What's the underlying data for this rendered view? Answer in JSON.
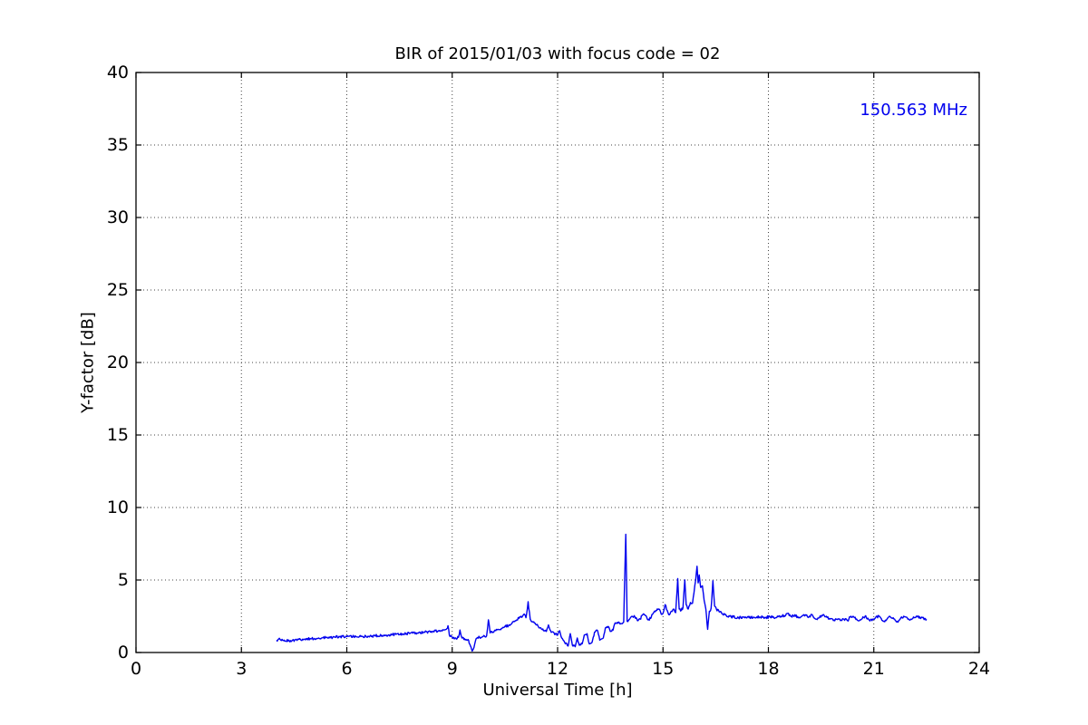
{
  "chart_data": {
    "type": "line",
    "title": "BIR of 2015/01/03 with focus code = 02",
    "xlabel": "Universal Time [h]",
    "ylabel": "Y-factor [dB]",
    "xlim": [
      0,
      24
    ],
    "ylim": [
      0,
      40
    ],
    "xticks": [
      0,
      3,
      6,
      9,
      12,
      15,
      18,
      21,
      24
    ],
    "yticks": [
      0,
      5,
      10,
      15,
      20,
      25,
      30,
      35,
      40
    ],
    "grid": "dotted",
    "grid_color": "#444444",
    "frame_color": "#000000",
    "legend_position": "upper right",
    "series": [
      {
        "name": "150.563 MHz",
        "color": "#0000ee",
        "noise_amplitude": 0.09,
        "points": [
          [
            4.0,
            0.85
          ],
          [
            4.1,
            0.9
          ],
          [
            4.25,
            0.8
          ],
          [
            4.4,
            0.82
          ],
          [
            4.6,
            0.88
          ],
          [
            4.8,
            0.92
          ],
          [
            5.0,
            0.95
          ],
          [
            5.2,
            1.0
          ],
          [
            5.4,
            1.02
          ],
          [
            5.6,
            1.05
          ],
          [
            5.8,
            1.08
          ],
          [
            6.0,
            1.1
          ],
          [
            6.2,
            1.1
          ],
          [
            6.4,
            1.1
          ],
          [
            6.6,
            1.12
          ],
          [
            6.8,
            1.15
          ],
          [
            7.0,
            1.18
          ],
          [
            7.2,
            1.22
          ],
          [
            7.4,
            1.25
          ],
          [
            7.6,
            1.28
          ],
          [
            7.8,
            1.32
          ],
          [
            8.0,
            1.35
          ],
          [
            8.2,
            1.4
          ],
          [
            8.4,
            1.45
          ],
          [
            8.6,
            1.5
          ],
          [
            8.75,
            1.55
          ],
          [
            8.85,
            1.65
          ],
          [
            8.88,
            1.85
          ],
          [
            8.92,
            1.2
          ],
          [
            9.0,
            1.05
          ],
          [
            9.1,
            1.0
          ],
          [
            9.18,
            1.05
          ],
          [
            9.22,
            1.55
          ],
          [
            9.28,
            1.0
          ],
          [
            9.35,
            0.95
          ],
          [
            9.45,
            0.9
          ],
          [
            9.52,
            0.45
          ],
          [
            9.57,
            0.1
          ],
          [
            9.62,
            0.35
          ],
          [
            9.68,
            0.95
          ],
          [
            9.78,
            1.05
          ],
          [
            9.88,
            1.1
          ],
          [
            9.98,
            1.15
          ],
          [
            10.03,
            2.25
          ],
          [
            10.08,
            1.35
          ],
          [
            10.2,
            1.5
          ],
          [
            10.3,
            1.6
          ],
          [
            10.4,
            1.65
          ],
          [
            10.5,
            1.8
          ],
          [
            10.6,
            1.85
          ],
          [
            10.7,
            2.0
          ],
          [
            10.8,
            2.2
          ],
          [
            10.9,
            2.35
          ],
          [
            11.0,
            2.5
          ],
          [
            11.05,
            2.65
          ],
          [
            11.1,
            2.4
          ],
          [
            11.16,
            3.5
          ],
          [
            11.22,
            2.3
          ],
          [
            11.3,
            2.1
          ],
          [
            11.4,
            1.9
          ],
          [
            11.5,
            1.7
          ],
          [
            11.6,
            1.5
          ],
          [
            11.68,
            1.45
          ],
          [
            11.74,
            1.9
          ],
          [
            11.8,
            1.5
          ],
          [
            11.9,
            1.35
          ],
          [
            12.0,
            1.2
          ],
          [
            12.06,
            1.5
          ],
          [
            12.12,
            1.0
          ],
          [
            12.2,
            0.7
          ],
          [
            12.3,
            0.45
          ],
          [
            12.36,
            1.3
          ],
          [
            12.42,
            0.5
          ],
          [
            12.5,
            0.4
          ],
          [
            12.56,
            1.0
          ],
          [
            12.62,
            0.5
          ],
          [
            12.7,
            0.6
          ],
          [
            12.76,
            1.2
          ],
          [
            12.84,
            1.3
          ],
          [
            12.9,
            0.6
          ],
          [
            12.98,
            0.7
          ],
          [
            13.05,
            1.4
          ],
          [
            13.14,
            1.5
          ],
          [
            13.2,
            0.85
          ],
          [
            13.3,
            1.0
          ],
          [
            13.36,
            1.7
          ],
          [
            13.44,
            1.8
          ],
          [
            13.5,
            1.45
          ],
          [
            13.58,
            1.55
          ],
          [
            13.64,
            2.05
          ],
          [
            13.74,
            2.1
          ],
          [
            13.8,
            2.0
          ],
          [
            13.88,
            2.1
          ],
          [
            13.94,
            8.15
          ],
          [
            13.98,
            2.15
          ],
          [
            14.05,
            2.3
          ],
          [
            14.12,
            2.5
          ],
          [
            14.2,
            2.45
          ],
          [
            14.27,
            2.2
          ],
          [
            14.35,
            2.3
          ],
          [
            14.42,
            2.6
          ],
          [
            14.5,
            2.55
          ],
          [
            14.57,
            2.25
          ],
          [
            14.65,
            2.35
          ],
          [
            14.72,
            2.7
          ],
          [
            14.8,
            2.9
          ],
          [
            14.88,
            3.0
          ],
          [
            14.95,
            2.65
          ],
          [
            15.0,
            2.7
          ],
          [
            15.06,
            3.3
          ],
          [
            15.12,
            2.9
          ],
          [
            15.18,
            2.6
          ],
          [
            15.24,
            2.85
          ],
          [
            15.3,
            3.0
          ],
          [
            15.36,
            2.75
          ],
          [
            15.42,
            5.1
          ],
          [
            15.46,
            3.0
          ],
          [
            15.52,
            2.9
          ],
          [
            15.57,
            3.1
          ],
          [
            15.62,
            5.0
          ],
          [
            15.66,
            3.3
          ],
          [
            15.72,
            3.0
          ],
          [
            15.78,
            3.45
          ],
          [
            15.84,
            3.4
          ],
          [
            15.88,
            4.1
          ],
          [
            15.93,
            5.0
          ],
          [
            15.97,
            5.95
          ],
          [
            16.0,
            4.8
          ],
          [
            16.03,
            5.35
          ],
          [
            16.07,
            4.5
          ],
          [
            16.12,
            4.6
          ],
          [
            16.17,
            3.6
          ],
          [
            16.22,
            3.0
          ],
          [
            16.27,
            1.6
          ],
          [
            16.32,
            2.85
          ],
          [
            16.37,
            3.05
          ],
          [
            16.42,
            4.95
          ],
          [
            16.47,
            3.2
          ],
          [
            16.52,
            3.0
          ],
          [
            16.6,
            2.8
          ],
          [
            16.7,
            2.65
          ],
          [
            16.8,
            2.55
          ],
          [
            16.9,
            2.5
          ],
          [
            17.0,
            2.45
          ],
          [
            17.15,
            2.4
          ],
          [
            17.3,
            2.45
          ],
          [
            17.45,
            2.4
          ],
          [
            17.6,
            2.42
          ],
          [
            17.75,
            2.45
          ],
          [
            17.9,
            2.42
          ],
          [
            18.05,
            2.45
          ],
          [
            18.2,
            2.4
          ],
          [
            18.35,
            2.5
          ],
          [
            18.45,
            2.55
          ],
          [
            18.55,
            2.7
          ],
          [
            18.65,
            2.5
          ],
          [
            18.75,
            2.6
          ],
          [
            18.85,
            2.4
          ],
          [
            18.95,
            2.5
          ],
          [
            19.05,
            2.6
          ],
          [
            19.15,
            2.45
          ],
          [
            19.25,
            2.6
          ],
          [
            19.35,
            2.3
          ],
          [
            19.45,
            2.4
          ],
          [
            19.55,
            2.6
          ],
          [
            19.65,
            2.5
          ],
          [
            19.75,
            2.3
          ],
          [
            19.85,
            2.2
          ],
          [
            19.95,
            2.3
          ],
          [
            20.05,
            2.2
          ],
          [
            20.15,
            2.3
          ],
          [
            20.25,
            2.2
          ],
          [
            20.35,
            2.5
          ],
          [
            20.45,
            2.4
          ],
          [
            20.55,
            2.2
          ],
          [
            20.65,
            2.3
          ],
          [
            20.75,
            2.5
          ],
          [
            20.85,
            2.3
          ],
          [
            20.95,
            2.2
          ],
          [
            21.05,
            2.4
          ],
          [
            21.15,
            2.5
          ],
          [
            21.25,
            2.2
          ],
          [
            21.35,
            2.2
          ],
          [
            21.45,
            2.5
          ],
          [
            21.55,
            2.4
          ],
          [
            21.65,
            2.1
          ],
          [
            21.75,
            2.3
          ],
          [
            21.85,
            2.5
          ],
          [
            21.95,
            2.4
          ],
          [
            22.05,
            2.3
          ],
          [
            22.15,
            2.4
          ],
          [
            22.25,
            2.45
          ],
          [
            22.35,
            2.4
          ],
          [
            22.45,
            2.35
          ],
          [
            22.5,
            2.3
          ]
        ]
      }
    ]
  }
}
